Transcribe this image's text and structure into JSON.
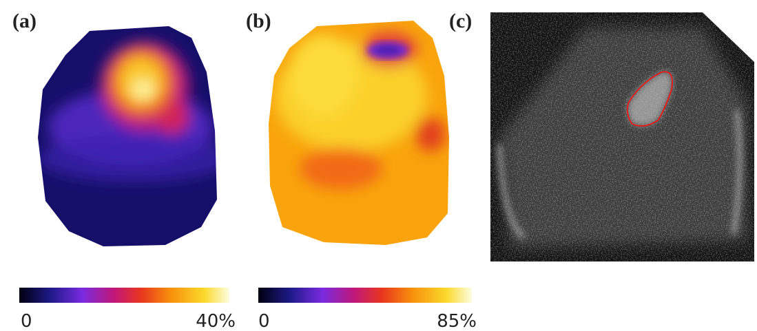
{
  "panels": [
    {
      "label": "(a)",
      "colorbar": {
        "min_label": "0",
        "max_label": "40%"
      }
    },
    {
      "label": "(b)",
      "colorbar": {
        "min_label": "0",
        "max_label": "85%"
      }
    },
    {
      "label": "(c)"
    }
  ]
}
